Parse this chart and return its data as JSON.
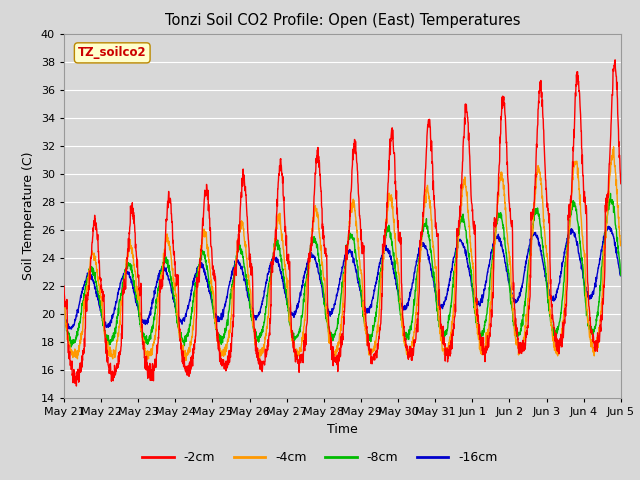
{
  "title": "Tonzi Soil CO2 Profile: Open (East) Temperatures",
  "xlabel": "Time",
  "ylabel": "Soil Temperature (C)",
  "ylim": [
    14,
    40
  ],
  "xlim_days": [
    0,
    15
  ],
  "legend_labels": [
    "-2cm",
    "-4cm",
    "-8cm",
    "-16cm"
  ],
  "legend_colors": [
    "#ff0000",
    "#ff9900",
    "#00bb00",
    "#0000cc"
  ],
  "site_label": "TZ_soilco2",
  "site_label_color": "#cc0000",
  "site_label_bg": "#ffffcc",
  "bg_color": "#d8d8d8",
  "grid_color": "#ffffff",
  "tick_labels": [
    "May 21",
    "May 22",
    "May 23",
    "May 24",
    "May 25",
    "May 26",
    "May 27",
    "May 28",
    "May 29",
    "May 30",
    "May 31",
    "Jun 1",
    "Jun 2",
    "Jun 3",
    "Jun 4",
    "Jun 5"
  ],
  "tick_positions": [
    0,
    1,
    2,
    3,
    4,
    5,
    6,
    7,
    8,
    9,
    10,
    11,
    12,
    13,
    14,
    15
  ],
  "yticks": [
    14,
    16,
    18,
    20,
    22,
    24,
    26,
    28,
    30,
    32,
    34,
    36,
    38,
    40
  ]
}
